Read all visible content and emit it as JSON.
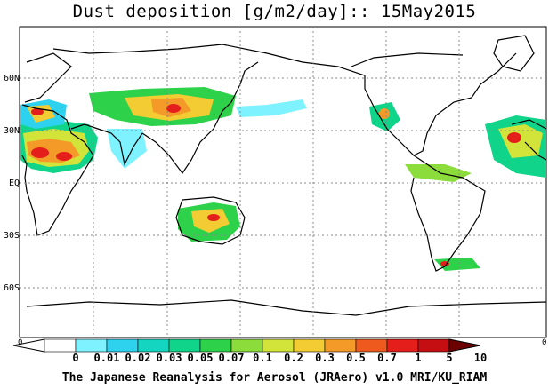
{
  "title": "Dust deposition [g/m2/day]:: 15May2015",
  "lat_labels": [
    "60N",
    "30N",
    "EQ",
    "30S",
    "60S"
  ],
  "frame_edge_labels": [
    "0",
    "0"
  ],
  "colorbar": {
    "ticks": [
      "0",
      "0.01",
      "0.02",
      "0.03",
      "0.05",
      "0.07",
      "0.1",
      "0.2",
      "0.3",
      "0.5",
      "0.7",
      "1",
      "5",
      "10"
    ],
    "colors": [
      "#ffffff",
      "#7ff2ff",
      "#2fd2ee",
      "#14d6c0",
      "#10d48a",
      "#2ed24a",
      "#8cdc3c",
      "#d2e43a",
      "#f2cc32",
      "#f49a28",
      "#ee5a1e",
      "#e41e1a",
      "#c40e12",
      "#9a0608",
      "#6a0000"
    ]
  },
  "footer": "The Japanese Reanalysis for Aerosol (JRAero) v1.0 MRI/KU_RIAM"
}
